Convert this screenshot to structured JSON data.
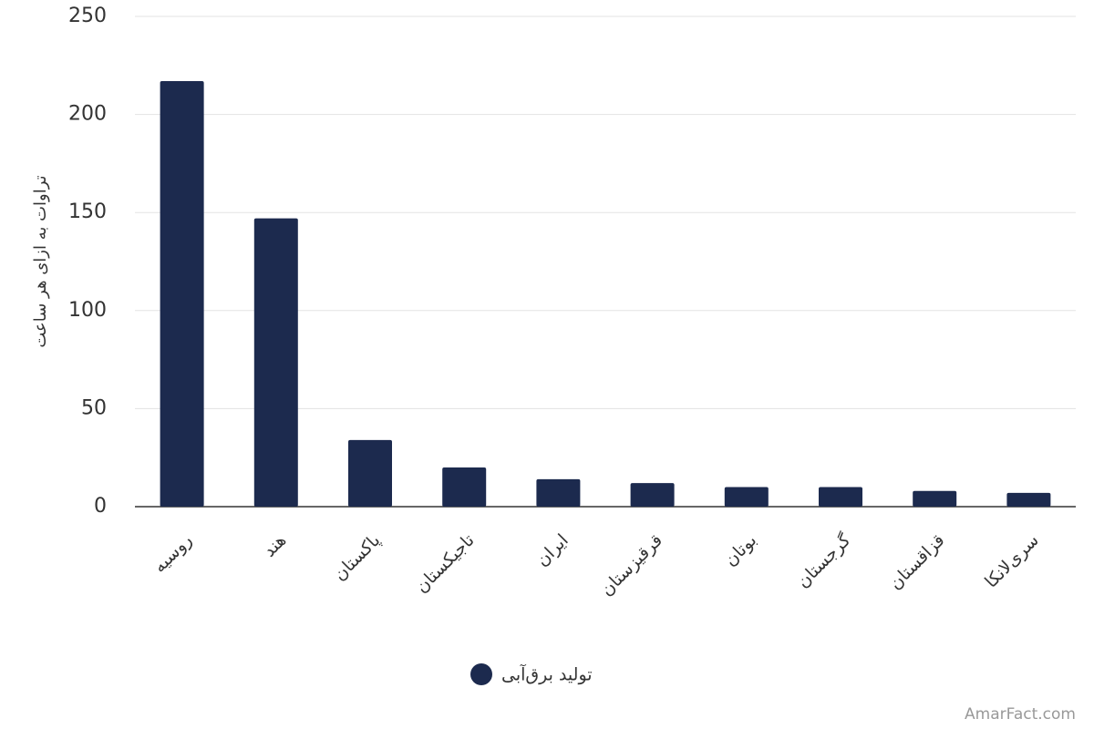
{
  "chart_data": {
    "type": "bar",
    "y_label": "تراوات به ازای هر ساعت",
    "categories": [
      "روسیه",
      "هند",
      "پاکستان",
      "تاجیکستان",
      "ایران",
      "قرقیزستان",
      "بوتان",
      "گرجستان",
      "قزاقستان",
      "سری‌لانکا"
    ],
    "series": [
      {
        "name": "تولید برق‌آبی",
        "color": "#1c2a4e",
        "values": [
          217,
          147,
          34,
          20,
          14,
          12,
          10,
          10,
          8,
          7
        ]
      }
    ],
    "ylim": [
      0,
      250
    ],
    "yticks": [
      0,
      50,
      100,
      150,
      200,
      250
    ],
    "grid": true,
    "legend": "bottom",
    "watermark": "AmarFact.com"
  }
}
